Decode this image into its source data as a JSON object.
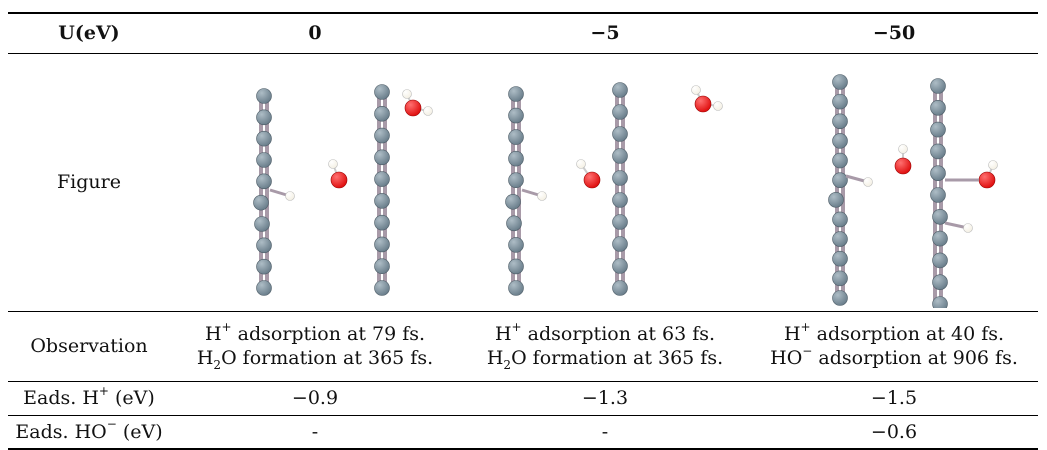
{
  "header": {
    "col0": "U(eV)",
    "col1": "0",
    "col2": "−5",
    "col3": "−50"
  },
  "rows": {
    "figure": {
      "label": "Figure"
    },
    "observation": {
      "label": "Observation",
      "c1_a": {
        "pre": "H",
        "sup": "+",
        "post": " adsorption at 79 fs."
      },
      "c1_b": {
        "pre": "H",
        "sub": "2",
        "post": "O formation at 365 fs."
      },
      "c2_a": {
        "pre": "H",
        "sup": "+",
        "post": " adsorption at 63 fs."
      },
      "c2_b": {
        "pre": "H",
        "sub": "2",
        "post": "O formation at 365 fs."
      },
      "c3_a": {
        "pre": "H",
        "sup": "+",
        "post": " adsorption at 40 fs."
      },
      "c3_b": {
        "pre": "HO",
        "sup": "−",
        "post": " adsorption at 906 fs."
      }
    },
    "eads_h": {
      "label_pre": "Eads. H",
      "label_sup": "+",
      "label_post": " (eV)",
      "v1": "−0.9",
      "v2": "−1.3",
      "v3": "−1.5"
    },
    "eads_ho": {
      "label_pre": "Eads. HO",
      "label_sup": "−",
      "label_post": " (eV)",
      "v1": "-",
      "v2": "-",
      "v3": "−0.6"
    }
  },
  "colors": {
    "carbon": "#6b7f8c",
    "carbon_light": "#aebdc6",
    "bond": "#a89aa8",
    "oxygen": "#e01010",
    "hydrogen": "#f4f0e4"
  }
}
